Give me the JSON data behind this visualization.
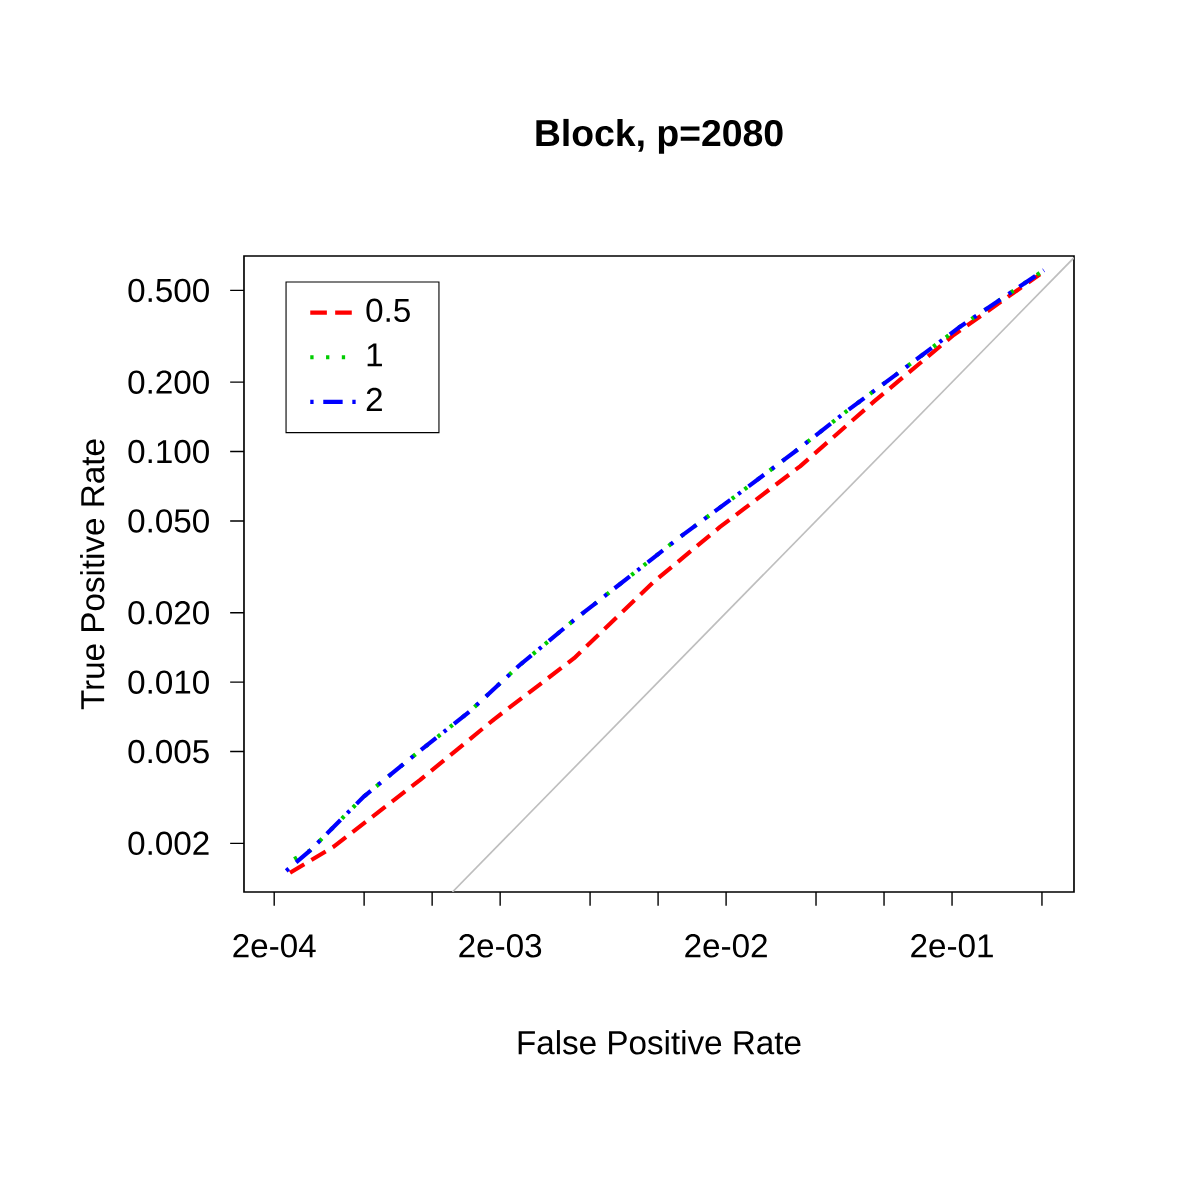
{
  "chart_data": {
    "type": "line",
    "title": "Block, p=2080",
    "xlabel": "False Positive Rate",
    "ylabel": "True Positive Rate",
    "log": "xy",
    "xlim": [
      0.000147,
      0.693
    ],
    "ylim": [
      0.00123,
      0.705
    ],
    "xticks": [
      {
        "value": 0.0002,
        "label": "2e-04"
      },
      {
        "value": 0.0005,
        "label": null
      },
      {
        "value": 0.001,
        "label": null
      },
      {
        "value": 0.002,
        "label": "2e-03"
      },
      {
        "value": 0.005,
        "label": null
      },
      {
        "value": 0.01,
        "label": null
      },
      {
        "value": 0.02,
        "label": "2e-02"
      },
      {
        "value": 0.05,
        "label": null
      },
      {
        "value": 0.1,
        "label": null
      },
      {
        "value": 0.2,
        "label": "2e-01"
      },
      {
        "value": 0.5,
        "label": null
      }
    ],
    "yticks": [
      {
        "value": 0.002,
        "label": "0.002"
      },
      {
        "value": 0.005,
        "label": "0.005"
      },
      {
        "value": 0.01,
        "label": "0.010"
      },
      {
        "value": 0.02,
        "label": "0.020"
      },
      {
        "value": 0.05,
        "label": "0.050"
      },
      {
        "value": 0.1,
        "label": "0.100"
      },
      {
        "value": 0.2,
        "label": "0.200"
      },
      {
        "value": 0.5,
        "label": "0.500"
      }
    ],
    "legend": "top left",
    "series": [
      {
        "type": "line",
        "color": "#bebebe",
        "line_style": "solid",
        "x": [
          0.00123,
          0.693
        ],
        "values": [
          0.00123,
          0.693
        ]
      },
      {
        "name": "0.5",
        "color": "#ff0000",
        "line_style": "dashed",
        "x": [
          0.000235,
          0.000368,
          0.000885,
          0.00188,
          0.00425,
          0.0096,
          0.0188,
          0.0425,
          0.0904,
          0.204,
          0.49
        ],
        "values": [
          0.00149,
          0.00194,
          0.00377,
          0.0069,
          0.0127,
          0.0273,
          0.0471,
          0.0863,
          0.165,
          0.321,
          0.587
        ]
      },
      {
        "name": "1",
        "color": "#00cd00",
        "line_style": "dotted",
        "x": [
          0.000245,
          0.000288,
          0.0005,
          0.00083,
          0.00147,
          0.00245,
          0.00425,
          0.0096,
          0.0125,
          0.0231,
          0.04,
          0.0679,
          0.125,
          0.217,
          0.376,
          0.51
        ],
        "values": [
          0.00171,
          0.00186,
          0.0032,
          0.0048,
          0.00748,
          0.0119,
          0.0186,
          0.0348,
          0.0426,
          0.0664,
          0.0993,
          0.149,
          0.232,
          0.348,
          0.5,
          0.612
        ]
      },
      {
        "name": "2",
        "color": "#0000ff",
        "line_style": "dashdot",
        "x": [
          0.000226,
          0.000288,
          0.0005,
          0.00083,
          0.00147,
          0.00245,
          0.00425,
          0.0096,
          0.0125,
          0.0231,
          0.04,
          0.0679,
          0.125,
          0.217,
          0.376,
          0.51
        ],
        "values": [
          0.00152,
          0.00186,
          0.0032,
          0.0048,
          0.00748,
          0.0119,
          0.0186,
          0.0348,
          0.0426,
          0.0664,
          0.0993,
          0.149,
          0.232,
          0.348,
          0.5,
          0.612
        ]
      }
    ]
  }
}
